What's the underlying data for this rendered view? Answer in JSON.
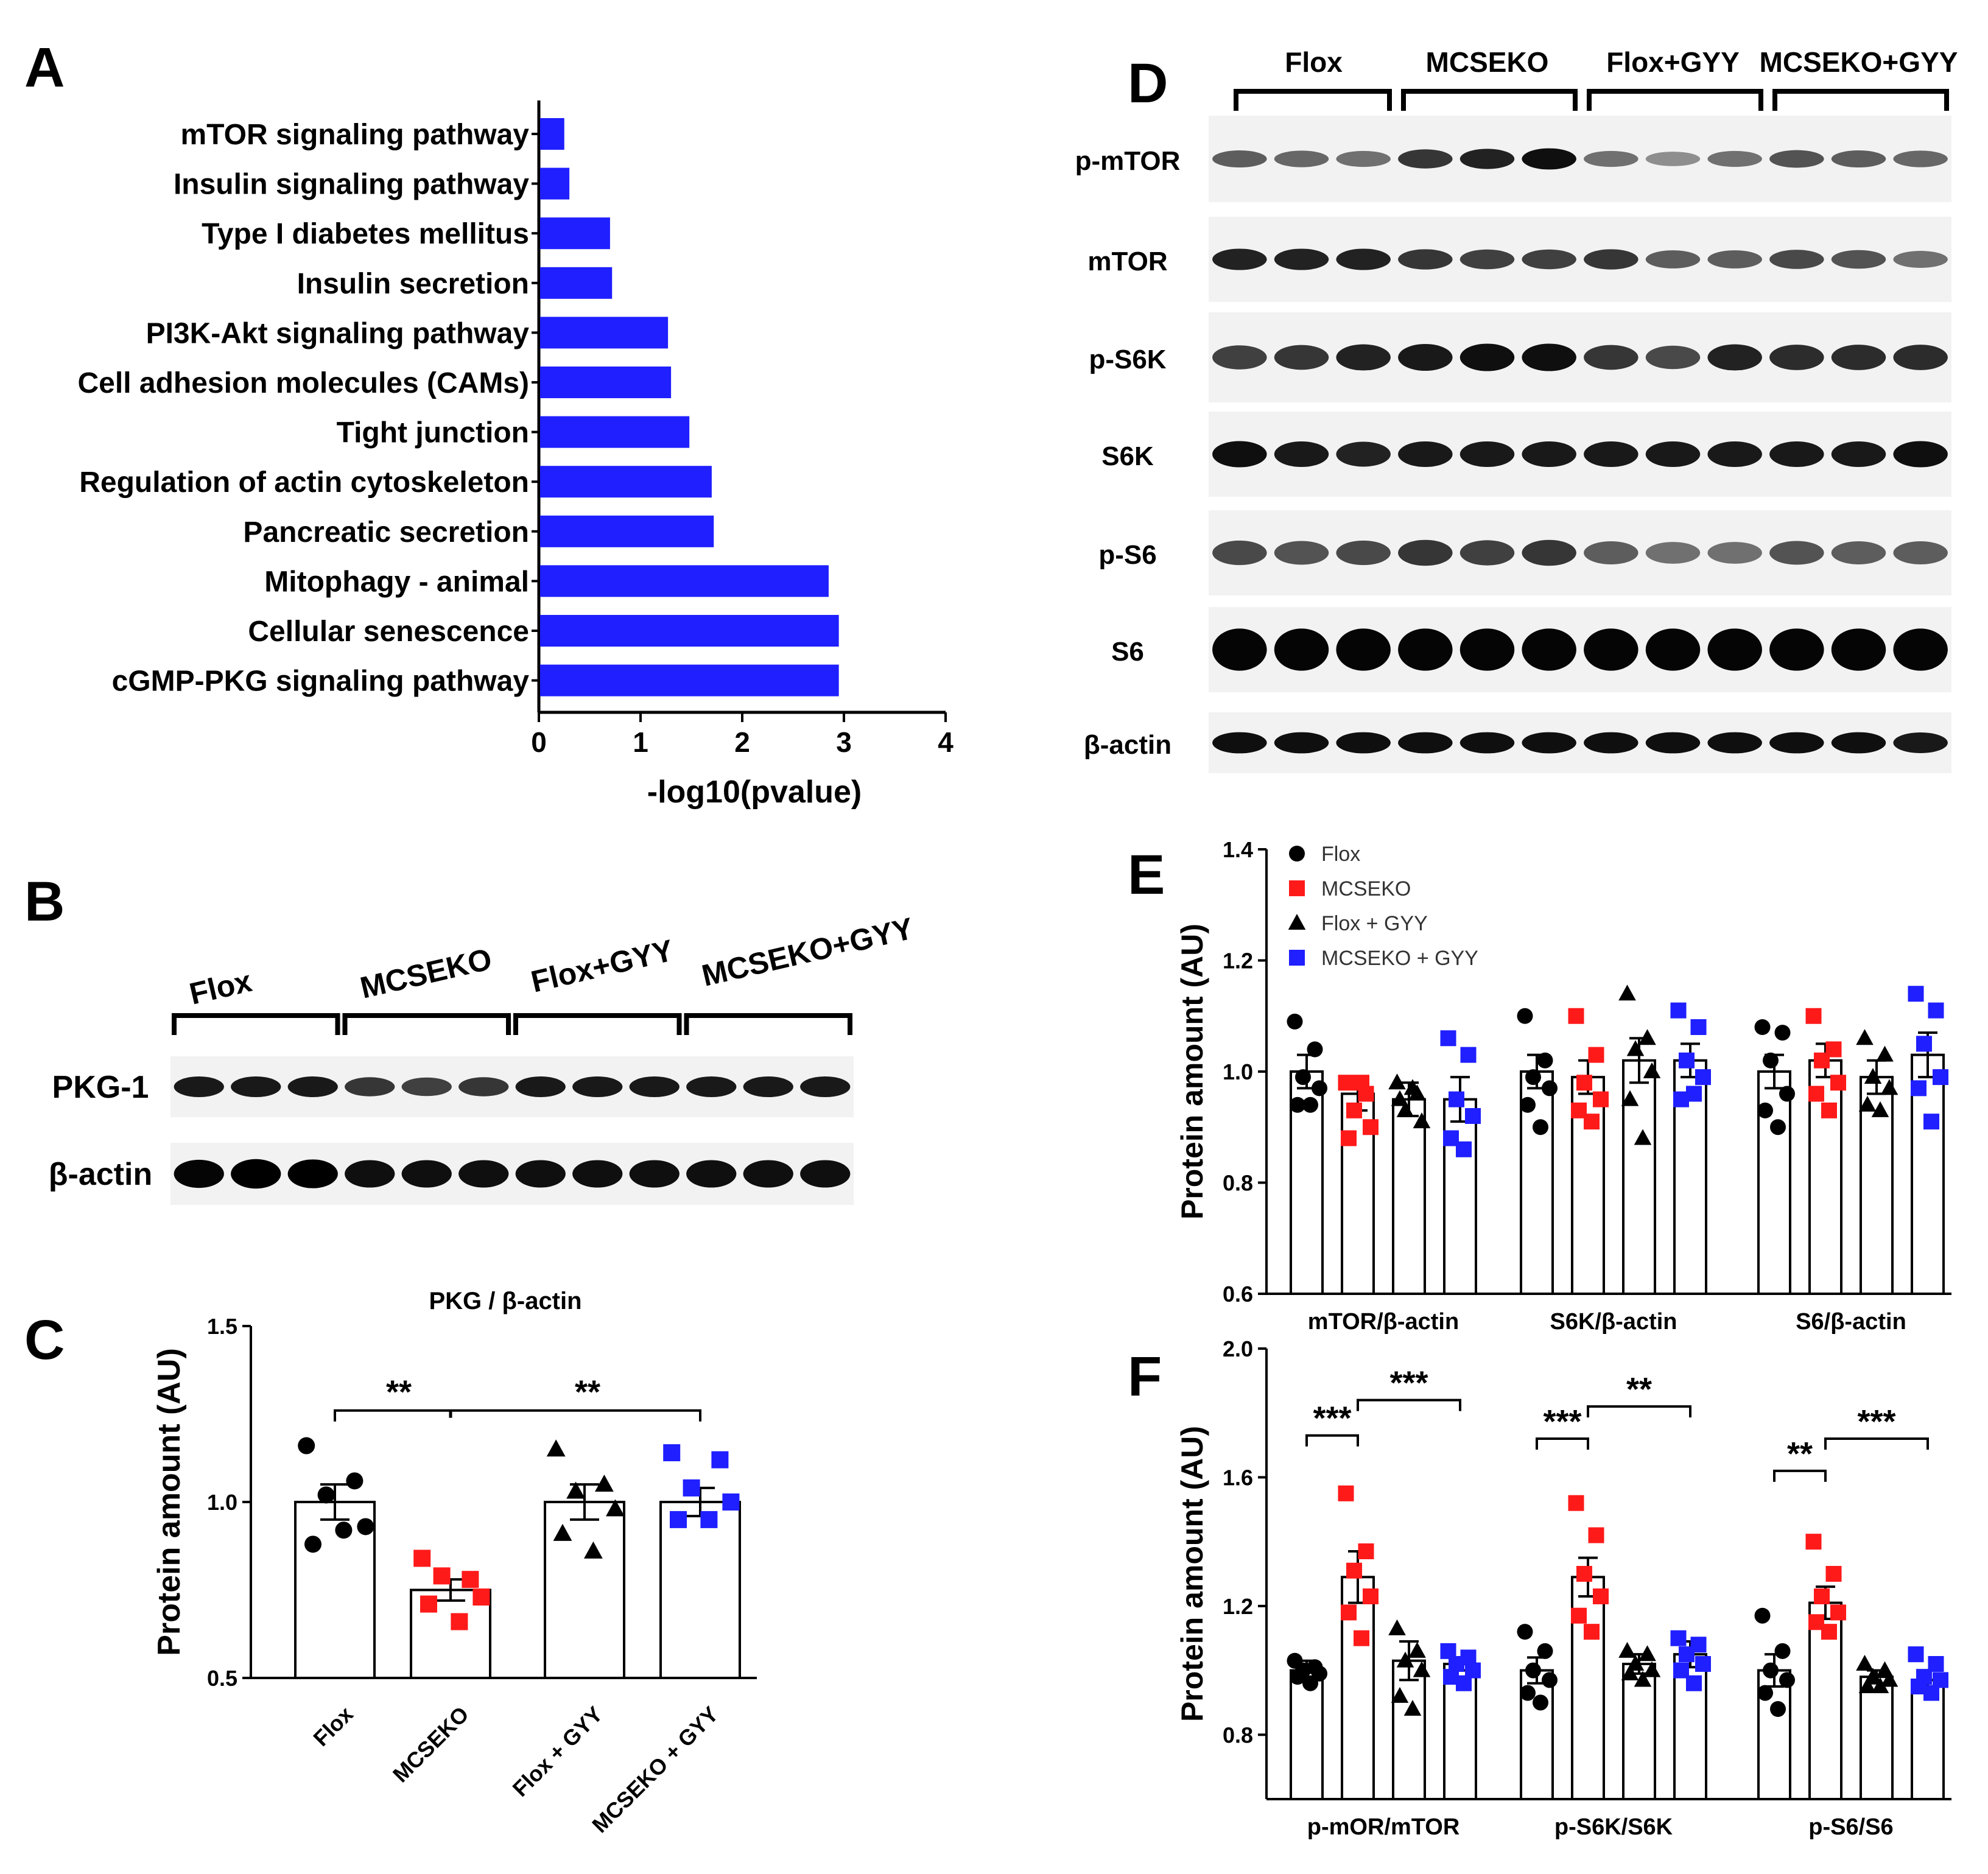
{
  "panels": {
    "a": "A",
    "b": "B",
    "c": "C",
    "d": "D",
    "e": "E",
    "f": "F"
  },
  "colors": {
    "blue": "#1f1fff",
    "red": "#ff1a1a",
    "black": "#000000"
  },
  "chart_data": [
    {
      "id": "A",
      "type": "bar",
      "orientation": "horizontal",
      "categories": [
        "mTOR signaling pathway",
        "Insulin signaling pathway",
        "Type I diabetes mellitus",
        "Insulin secretion",
        "PI3K-Akt signaling pathway",
        "Cell adhesion molecules (CAMs)",
        "Tight junction",
        "Regulation of actin cytoskeleton",
        "Pancreatic secretion",
        "Mitophagy - animal",
        "Cellular senescence",
        "cGMP-PKG signaling pathway"
      ],
      "values": [
        0.25,
        0.3,
        0.7,
        0.72,
        1.27,
        1.3,
        1.48,
        1.7,
        1.72,
        2.85,
        2.95,
        2.95
      ],
      "xlabel": "-log10(pvalue)",
      "xlim": [
        0,
        4
      ],
      "xticks": [
        0,
        1,
        2,
        3,
        4
      ]
    },
    {
      "id": "C",
      "type": "bar",
      "title": "PKG / β-actin",
      "ylabel": "Protein amount (AU)",
      "ylim": [
        0.5,
        1.5
      ],
      "yticks": [
        "0.5",
        "1.0",
        "1.5"
      ],
      "categories": [
        "Flox",
        "MCSEKO",
        "Flox + GYY",
        "MCSEKO + GYY"
      ],
      "values": [
        1.0,
        0.75,
        1.0,
        1.0
      ],
      "sem": [
        0.05,
        0.03,
        0.05,
        0.04
      ],
      "points": [
        [
          1.16,
          1.06,
          1.02,
          0.93,
          0.88,
          0.92
        ],
        [
          0.84,
          0.78,
          0.79,
          0.73,
          0.71,
          0.66
        ],
        [
          1.15,
          1.05,
          1.03,
          0.98,
          0.91,
          0.86
        ],
        [
          1.14,
          1.12,
          1.04,
          1.0,
          0.95,
          0.95
        ]
      ],
      "comparisons": [
        {
          "text": "**"
        },
        {
          "text": "**"
        }
      ]
    },
    {
      "id": "E",
      "type": "bar",
      "ylabel": "Protein amount (AU)",
      "ylim": [
        0.6,
        1.4
      ],
      "yticks": [
        "0.6",
        "0.8",
        "1.0",
        "1.2",
        "1.4"
      ],
      "groups": [
        "mTOR/β-actin",
        "S6K/β-actin",
        "S6/β-actin"
      ],
      "legend": [
        "Flox",
        "MCSEKO",
        "Flox + GYY",
        "MCSEKO + GYY"
      ],
      "series": [
        {
          "name": "Flox",
          "values": [
            1.0,
            1.0,
            1.0
          ],
          "sem": [
            0.03,
            0.03,
            0.03
          ]
        },
        {
          "name": "MCSEKO",
          "values": [
            0.96,
            0.99,
            1.02
          ],
          "sem": [
            0.03,
            0.03,
            0.03
          ]
        },
        {
          "name": "Flox + GYY",
          "values": [
            0.95,
            1.02,
            0.99
          ],
          "sem": [
            0.03,
            0.04,
            0.03
          ]
        },
        {
          "name": "MCSEKO + GYY",
          "values": [
            0.95,
            1.02,
            1.03
          ],
          "sem": [
            0.04,
            0.03,
            0.04
          ]
        }
      ],
      "points": [
        [
          [
            1.09,
            1.04,
            0.99,
            0.97,
            0.94,
            0.94
          ],
          [
            0.98,
            0.96,
            0.93,
            0.9,
            0.88,
            0.98
          ],
          [
            0.98,
            0.96,
            0.93,
            0.91,
            0.95,
            0.97
          ],
          [
            1.06,
            1.03,
            0.95,
            0.92,
            0.88,
            0.86
          ]
        ],
        [
          [
            1.1,
            1.02,
            0.99,
            0.97,
            0.94,
            0.9
          ],
          [
            1.1,
            1.03,
            0.98,
            0.95,
            0.93,
            0.91
          ],
          [
            1.14,
            1.06,
            1.04,
            1.0,
            0.95,
            0.88
          ],
          [
            1.11,
            1.08,
            1.02,
            0.99,
            0.95,
            0.96
          ]
        ],
        [
          [
            1.08,
            1.07,
            1.02,
            0.96,
            0.93,
            0.9
          ],
          [
            1.1,
            1.04,
            1.02,
            0.98,
            0.96,
            0.93
          ],
          [
            1.06,
            1.03,
            0.99,
            0.97,
            0.94,
            0.93
          ],
          [
            1.14,
            1.11,
            1.05,
            0.99,
            0.97,
            0.91
          ]
        ]
      ]
    },
    {
      "id": "F",
      "type": "bar",
      "ylabel": "Protein amount (AU)",
      "ylim": [
        0.6,
        2.0
      ],
      "yticks": [
        "0.8",
        "1.2",
        "1.6",
        "2.0"
      ],
      "groups": [
        "p-mOR/mTOR",
        "p-S6K/S6K",
        "p-S6/S6"
      ],
      "series": [
        {
          "name": "Flox",
          "values": [
            1.0,
            1.0,
            1.0
          ],
          "sem": [
            0.03,
            0.04,
            0.05
          ]
        },
        {
          "name": "MCSEKO",
          "values": [
            1.29,
            1.29,
            1.21
          ],
          "sem": [
            0.08,
            0.06,
            0.05
          ]
        },
        {
          "name": "Flox + GYY",
          "values": [
            1.03,
            1.02,
            0.98
          ],
          "sem": [
            0.06,
            0.03,
            0.02
          ]
        },
        {
          "name": "MCSEKO + GYY",
          "values": [
            1.02,
            1.05,
            0.97
          ],
          "sem": [
            0.02,
            0.04,
            0.03
          ]
        }
      ],
      "points": [
        [
          [
            1.03,
            1.01,
            1.0,
            0.99,
            0.98,
            0.96
          ],
          [
            1.55,
            1.37,
            1.31,
            1.23,
            1.18,
            1.1
          ],
          [
            1.13,
            1.06,
            1.03,
            1.0,
            0.92,
            0.88
          ],
          [
            1.06,
            1.04,
            1.02,
            1.0,
            0.98,
            0.96
          ]
        ],
        [
          [
            1.12,
            1.06,
            1.0,
            0.97,
            0.93,
            0.9
          ],
          [
            1.52,
            1.42,
            1.3,
            1.23,
            1.17,
            1.12
          ],
          [
            1.06,
            1.05,
            1.02,
            1.0,
            0.99,
            0.97
          ],
          [
            1.1,
            1.08,
            1.05,
            1.02,
            1.0,
            0.96
          ]
        ],
        [
          [
            1.17,
            1.06,
            1.0,
            0.97,
            0.93,
            0.88
          ],
          [
            1.4,
            1.3,
            1.23,
            1.18,
            1.15,
            1.12
          ],
          [
            1.02,
            1.0,
            0.98,
            0.97,
            0.95,
            0.95
          ],
          [
            1.05,
            1.02,
            0.98,
            0.97,
            0.95,
            0.93
          ]
        ]
      ],
      "comparisons": [
        {
          "group": 0,
          "text": "***"
        },
        {
          "group": 0,
          "text": "***"
        },
        {
          "group": 1,
          "text": "***"
        },
        {
          "group": 1,
          "text": "**"
        },
        {
          "group": 2,
          "text": "**"
        },
        {
          "group": 2,
          "text": "***"
        }
      ]
    }
  ],
  "blots": {
    "b": {
      "groups": [
        "Flox",
        "MCSEKO",
        "Flox+GYY",
        "MCSEKO+GYY"
      ],
      "rows": [
        {
          "label": "PKG-1",
          "intensity": [
            [
              0.9,
              0.9,
              0.9
            ],
            [
              0.75,
              0.7,
              0.75
            ],
            [
              0.9,
              0.9,
              0.9
            ],
            [
              0.9,
              0.9,
              0.9
            ]
          ]
        },
        {
          "label": "β-actin",
          "intensity": [
            [
              1.0,
              1.1,
              1.05
            ],
            [
              0.95,
              0.95,
              0.95
            ],
            [
              0.95,
              0.95,
              0.95
            ],
            [
              0.95,
              0.95,
              0.95
            ]
          ]
        }
      ]
    },
    "d": {
      "groups": [
        "Flox",
        "MCSEKO",
        "Flox+GYY",
        "MCSEKO+GYY"
      ],
      "rows": [
        {
          "label": "p-mTOR",
          "intensity": [
            [
              0.55,
              0.5,
              0.45
            ],
            [
              0.75,
              0.85,
              0.95
            ],
            [
              0.45,
              0.3,
              0.45
            ],
            [
              0.6,
              0.55,
              0.5
            ]
          ]
        },
        {
          "label": "mTOR",
          "intensity": [
            [
              0.85,
              0.85,
              0.85
            ],
            [
              0.75,
              0.7,
              0.7
            ],
            [
              0.75,
              0.55,
              0.55
            ],
            [
              0.65,
              0.6,
              0.45
            ]
          ]
        },
        {
          "label": "p-S6K",
          "intensity": [
            [
              0.7,
              0.75,
              0.85
            ],
            [
              0.9,
              0.95,
              0.95
            ],
            [
              0.75,
              0.65,
              0.85
            ],
            [
              0.8,
              0.8,
              0.8
            ]
          ]
        },
        {
          "label": "S6K",
          "intensity": [
            [
              0.95,
              0.9,
              0.85
            ],
            [
              0.9,
              0.9,
              0.9
            ],
            [
              0.9,
              0.9,
              0.9
            ],
            [
              0.9,
              0.9,
              0.95
            ]
          ]
        },
        {
          "label": "p-S6",
          "intensity": [
            [
              0.65,
              0.6,
              0.65
            ],
            [
              0.75,
              0.7,
              0.75
            ],
            [
              0.55,
              0.45,
              0.45
            ],
            [
              0.6,
              0.55,
              0.55
            ]
          ]
        },
        {
          "label": "S6",
          "intensity": [
            [
              1.0,
              1.0,
              1.0
            ],
            [
              1.0,
              1.0,
              1.0
            ],
            [
              1.0,
              1.0,
              1.0
            ],
            [
              1.0,
              1.0,
              1.0
            ]
          ]
        },
        {
          "label": "β-actin",
          "intensity": [
            [
              0.95,
              0.95,
              0.95
            ],
            [
              0.95,
              0.95,
              0.95
            ],
            [
              0.95,
              0.95,
              0.95
            ],
            [
              0.95,
              0.95,
              0.9
            ]
          ]
        }
      ]
    }
  }
}
